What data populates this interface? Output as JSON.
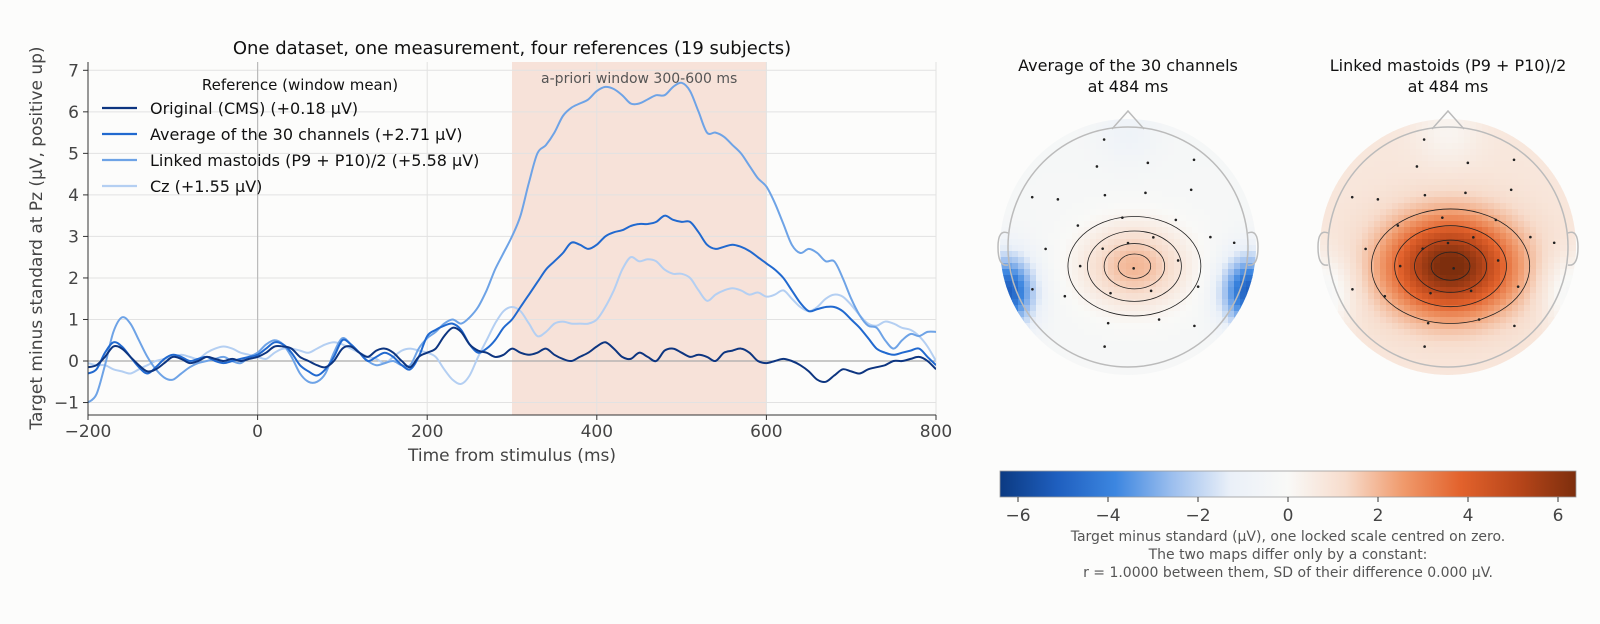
{
  "chart_data": [
    {
      "type": "line",
      "title": "One dataset, one measurement, four references (19 subjects)",
      "xlabel": "Time from stimulus (ms)",
      "ylabel": "Target minus standard at Pz (µV, positive up)",
      "xlim": [
        -200,
        800
      ],
      "ylim": [
        -1.3,
        7.2
      ],
      "xticks": [
        -200,
        0,
        200,
        400,
        600,
        800
      ],
      "yticks": [
        -1,
        0,
        1,
        2,
        3,
        4,
        5,
        6,
        7
      ],
      "grid": true,
      "legend_title": "Reference (window mean)",
      "legend_position": "top-left",
      "window": {
        "start": 300,
        "end": 600,
        "label": "a-priori window 300-600 ms",
        "color": "#f6d9cd"
      },
      "x": [
        -200,
        -190,
        -180,
        -170,
        -160,
        -150,
        -140,
        -130,
        -120,
        -110,
        -100,
        -90,
        -80,
        -70,
        -60,
        -50,
        -40,
        -30,
        -20,
        -10,
        0,
        10,
        20,
        30,
        40,
        50,
        60,
        70,
        80,
        90,
        100,
        110,
        120,
        130,
        140,
        150,
        160,
        170,
        180,
        190,
        200,
        210,
        220,
        230,
        240,
        250,
        260,
        270,
        280,
        290,
        300,
        310,
        320,
        330,
        340,
        350,
        360,
        370,
        380,
        390,
        400,
        410,
        420,
        430,
        440,
        450,
        460,
        470,
        480,
        490,
        500,
        510,
        520,
        530,
        540,
        550,
        560,
        570,
        580,
        590,
        600,
        610,
        620,
        630,
        640,
        650,
        660,
        670,
        680,
        690,
        700,
        710,
        720,
        730,
        740,
        750,
        760,
        770,
        780,
        790,
        800
      ],
      "series": [
        {
          "name": "Original (CMS)  (+0.18 µV)",
          "color": "#0d3580",
          "values": [
            -0.15,
            -0.1,
            0.1,
            0.35,
            0.3,
            0.1,
            -0.1,
            -0.25,
            -0.2,
            -0.05,
            0.1,
            0.05,
            -0.05,
            0.0,
            0.1,
            0.05,
            0.0,
            0.05,
            0.0,
            0.05,
            0.1,
            0.2,
            0.35,
            0.35,
            0.3,
            0.1,
            0.0,
            -0.1,
            -0.15,
            0.0,
            0.3,
            0.35,
            0.2,
            0.1,
            0.25,
            0.3,
            0.2,
            0.0,
            -0.15,
            0.1,
            0.2,
            0.3,
            0.6,
            0.8,
            0.7,
            0.4,
            0.25,
            0.2,
            0.1,
            0.15,
            0.3,
            0.2,
            0.15,
            0.2,
            0.3,
            0.15,
            0.05,
            0.0,
            0.1,
            0.2,
            0.35,
            0.45,
            0.3,
            0.1,
            0.05,
            0.2,
            0.1,
            0.0,
            0.25,
            0.3,
            0.2,
            0.1,
            0.15,
            0.1,
            0.0,
            0.2,
            0.25,
            0.3,
            0.2,
            0.0,
            -0.05,
            0.0,
            0.05,
            0.0,
            -0.1,
            -0.25,
            -0.45,
            -0.5,
            -0.35,
            -0.2,
            -0.25,
            -0.3,
            -0.2,
            -0.15,
            -0.1,
            0.0,
            0.0,
            0.05,
            0.1,
            0.0,
            -0.2
          ]
        },
        {
          "name": "Average of the 30 channels  (+2.71 µV)",
          "color": "#2169cf",
          "values": [
            -0.3,
            -0.2,
            0.2,
            0.45,
            0.35,
            0.1,
            -0.15,
            -0.3,
            -0.15,
            0.05,
            0.15,
            0.1,
            0.0,
            0.05,
            0.1,
            0.0,
            -0.05,
            0.0,
            0.05,
            0.1,
            0.15,
            0.3,
            0.45,
            0.4,
            0.2,
            -0.1,
            -0.25,
            -0.35,
            -0.2,
            0.1,
            0.5,
            0.4,
            0.2,
            0.0,
            0.1,
            0.2,
            0.1,
            -0.1,
            -0.2,
            0.1,
            0.6,
            0.75,
            0.85,
            0.9,
            0.75,
            0.4,
            0.2,
            0.3,
            0.5,
            0.8,
            1.0,
            1.3,
            1.6,
            1.9,
            2.2,
            2.4,
            2.6,
            2.85,
            2.8,
            2.7,
            2.8,
            3.0,
            3.1,
            3.15,
            3.25,
            3.3,
            3.3,
            3.35,
            3.5,
            3.4,
            3.35,
            3.35,
            3.1,
            2.8,
            2.7,
            2.75,
            2.8,
            2.75,
            2.65,
            2.5,
            2.35,
            2.2,
            2.0,
            1.7,
            1.4,
            1.2,
            1.25,
            1.3,
            1.3,
            1.2,
            1.0,
            0.8,
            0.55,
            0.3,
            0.2,
            0.15,
            0.2,
            0.25,
            0.3,
            0.1,
            -0.1
          ]
        },
        {
          "name": "Linked mastoids (P9 + P10)/2  (+5.58 µV)",
          "color": "#6ea3e6",
          "values": [
            -1.0,
            -0.8,
            -0.1,
            0.7,
            1.05,
            0.9,
            0.5,
            0.1,
            -0.2,
            -0.4,
            -0.45,
            -0.3,
            -0.15,
            -0.05,
            0.0,
            0.05,
            0.1,
            0.0,
            -0.05,
            0.1,
            0.2,
            0.4,
            0.5,
            0.4,
            0.1,
            -0.3,
            -0.5,
            -0.5,
            -0.3,
            0.2,
            0.55,
            0.4,
            0.2,
            0.0,
            -0.1,
            -0.05,
            0.0,
            -0.1,
            -0.1,
            0.3,
            0.55,
            0.7,
            0.9,
            1.0,
            0.9,
            1.05,
            1.3,
            1.7,
            2.2,
            2.6,
            3.0,
            3.5,
            4.3,
            5.0,
            5.2,
            5.5,
            5.9,
            6.1,
            6.2,
            6.3,
            6.5,
            6.6,
            6.55,
            6.4,
            6.2,
            6.2,
            6.3,
            6.4,
            6.4,
            6.6,
            6.7,
            6.5,
            6.0,
            5.5,
            5.5,
            5.4,
            5.2,
            5.0,
            4.7,
            4.4,
            4.2,
            3.8,
            3.3,
            2.8,
            2.6,
            2.7,
            2.6,
            2.4,
            2.4,
            2.0,
            1.5,
            1.1,
            0.85,
            0.8,
            0.5,
            0.3,
            0.5,
            0.65,
            0.6,
            0.7,
            0.7
          ]
        },
        {
          "name": "Cz  (+1.55 µV)",
          "color": "#b4cff2",
          "values": [
            -0.05,
            -0.1,
            -0.1,
            -0.2,
            -0.25,
            -0.3,
            -0.2,
            -0.1,
            0.0,
            0.05,
            0.1,
            0.15,
            0.1,
            0.05,
            0.2,
            0.3,
            0.35,
            0.3,
            0.2,
            0.15,
            0.1,
            0.05,
            0.2,
            0.3,
            0.3,
            0.25,
            0.2,
            0.3,
            0.4,
            0.45,
            0.4,
            0.3,
            0.2,
            0.1,
            0.05,
            -0.05,
            0.1,
            0.25,
            0.3,
            0.25,
            0.2,
            0.1,
            -0.2,
            -0.45,
            -0.55,
            -0.35,
            0.1,
            0.5,
            0.9,
            1.2,
            1.3,
            1.2,
            0.9,
            0.6,
            0.7,
            0.9,
            0.95,
            0.9,
            0.9,
            0.9,
            1.0,
            1.3,
            1.7,
            2.2,
            2.5,
            2.4,
            2.45,
            2.4,
            2.2,
            2.1,
            2.1,
            2.0,
            1.7,
            1.45,
            1.6,
            1.7,
            1.75,
            1.7,
            1.6,
            1.65,
            1.55,
            1.6,
            1.7,
            1.5,
            1.3,
            1.2,
            1.3,
            1.5,
            1.6,
            1.55,
            1.35,
            1.1,
            0.9,
            0.85,
            0.95,
            0.9,
            0.8,
            0.75,
            0.6,
            0.35,
            0.0
          ]
        }
      ]
    },
    {
      "type": "heatmap",
      "title": "Average of the 30 channels\nat 484 ms",
      "peak": 2.3,
      "center": [
        0.05,
        -0.15
      ],
      "spread": [
        0.42,
        0.33
      ],
      "offset": -0.3,
      "side_negative": -4.8
    },
    {
      "type": "heatmap",
      "title": "Linked mastoids (P9 + P10)/2\nat 484 ms",
      "peak": 5.8,
      "center": [
        0.02,
        -0.15
      ],
      "spread": [
        0.5,
        0.38
      ],
      "offset": 0.8,
      "side_negative": -1.2
    }
  ],
  "colorbar": {
    "range": [
      -6.4,
      6.4
    ],
    "ticks": [
      -6,
      -4,
      -2,
      0,
      2,
      4,
      6
    ],
    "tick_labels": [
      "−6",
      "−4",
      "−2",
      "0",
      "2",
      "4",
      "6"
    ],
    "caption": [
      "Target minus standard (µV), one locked scale centred on zero.",
      "The two maps differ only by a constant:",
      "r = 1.0000 between them, SD of their difference 0.000 µV."
    ],
    "colors": [
      "#0b3a82",
      "#1f5fbf",
      "#3c86e0",
      "#9dbfee",
      "#eaf0f8",
      "#f9f9f7",
      "#f7dccc",
      "#f09a6c",
      "#e2622c",
      "#b8461a",
      "#7d2e0d"
    ]
  }
}
